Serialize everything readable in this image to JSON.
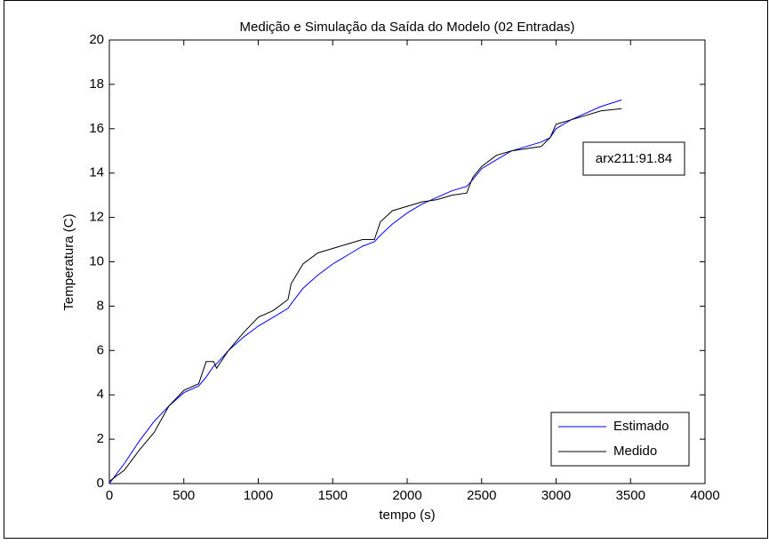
{
  "chart_data": {
    "type": "line",
    "title": "Medição e Simulação da Saída do Modelo (02 Entradas)",
    "x_label": "tempo (s)",
    "y_label": "Temperatura (C)",
    "annotation": "arx211:91.84",
    "x": [
      0,
      100,
      200,
      300,
      400,
      500,
      600,
      650,
      700,
      720,
      800,
      900,
      1000,
      1100,
      1200,
      1220,
      1300,
      1400,
      1500,
      1600,
      1700,
      1780,
      1820,
      1900,
      2000,
      2100,
      2200,
      2300,
      2400,
      2440,
      2500,
      2600,
      2700,
      2800,
      2900,
      2960,
      3000,
      3100,
      3200,
      3300,
      3440
    ],
    "series": [
      {
        "name": "Estimado",
        "color": "#0000ff",
        "values": [
          0,
          0.9,
          1.9,
          2.8,
          3.5,
          4.1,
          4.4,
          4.8,
          5.3,
          5.4,
          6.0,
          6.6,
          7.1,
          7.5,
          7.9,
          8.1,
          8.8,
          9.4,
          9.9,
          10.3,
          10.7,
          10.9,
          11.2,
          11.7,
          12.2,
          12.6,
          12.9,
          13.2,
          13.4,
          13.7,
          14.2,
          14.6,
          15.0,
          15.2,
          15.4,
          15.6,
          16.0,
          16.4,
          16.7,
          17.0,
          17.3
        ]
      },
      {
        "name": "Medido",
        "color": "#000000",
        "values": [
          0.1,
          0.6,
          1.5,
          2.3,
          3.5,
          4.2,
          4.5,
          5.5,
          5.5,
          5.2,
          6.0,
          6.8,
          7.5,
          7.8,
          8.3,
          9.0,
          9.9,
          10.4,
          10.6,
          10.8,
          11.0,
          11.0,
          11.8,
          12.3,
          12.5,
          12.7,
          12.8,
          13.0,
          13.1,
          13.8,
          14.3,
          14.8,
          15.0,
          15.1,
          15.2,
          15.6,
          16.2,
          16.4,
          16.6,
          16.8,
          16.9
        ]
      }
    ],
    "xlim": [
      0,
      4000
    ],
    "xticks": [
      0,
      500,
      1000,
      1500,
      2000,
      2500,
      3000,
      3500,
      4000
    ],
    "ylim": [
      0,
      20
    ],
    "yticks": [
      0,
      2,
      4,
      6,
      8,
      10,
      12,
      14,
      16,
      18,
      20
    ],
    "grid": false,
    "legend": "lower right"
  }
}
